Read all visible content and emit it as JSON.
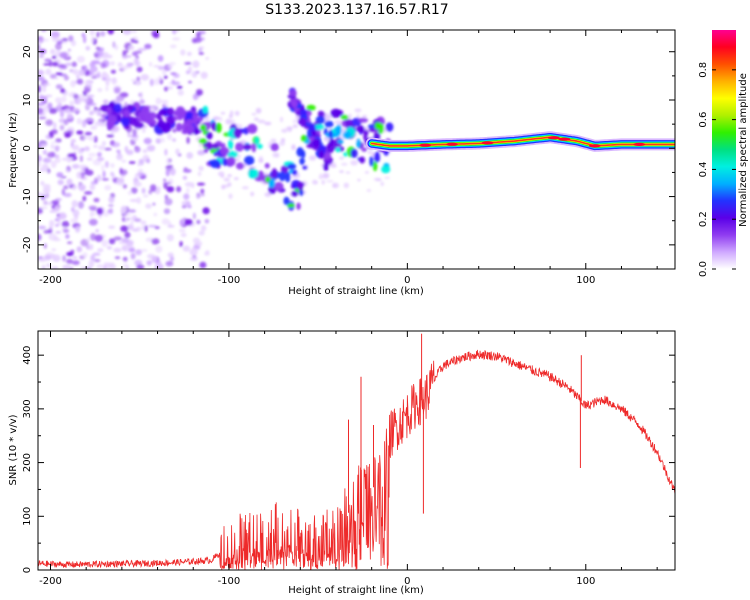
{
  "title": "S133.2023.137.16.57.R17",
  "chart_data": [
    {
      "type": "heatmap",
      "xlabel": "Height of straight line (km)",
      "ylabel": "Frequency (Hz)",
      "xlim": [
        -207,
        150
      ],
      "ylim": [
        -25,
        24.5
      ],
      "xticks": [
        -200,
        -100,
        0,
        100
      ],
      "yticks": [
        -20,
        -10,
        0,
        10,
        20
      ],
      "colorbar": {
        "label": "Normalized spectral amplitude",
        "range": [
          0,
          0.96
        ],
        "ticks": [
          "0.0",
          "0.2",
          "0.4",
          "0.6",
          "0.8"
        ],
        "colors": [
          "#ffffff",
          "#cfa8ff",
          "#8f3cf0",
          "#5a00e8",
          "#2233ff",
          "#00b0ff",
          "#00f0e0",
          "#00e080",
          "#30f000",
          "#b0f000",
          "#ffff00",
          "#ffb000",
          "#ff5000",
          "#ff0020",
          "#ff0090"
        ]
      },
      "ridge": [
        {
          "x": -170,
          "y": 6.5
        },
        {
          "x": -150,
          "y": 6.5
        },
        {
          "x": -130,
          "y": 6
        },
        {
          "x": -115,
          "y": 5.5
        },
        {
          "x": -110,
          "y": 1.5
        },
        {
          "x": -100,
          "y": 0.5
        },
        {
          "x": -90,
          "y": 1
        },
        {
          "x": -80,
          "y": -3
        },
        {
          "x": -70,
          "y": -5
        },
        {
          "x": -62,
          "y": -9
        },
        {
          "x": -55,
          "y": 4
        },
        {
          "x": -45,
          "y": 2
        },
        {
          "x": -35,
          "y": 3
        },
        {
          "x": -20,
          "y": 1
        },
        {
          "x": -10,
          "y": 0.5
        },
        {
          "x": 0,
          "y": 0.5
        },
        {
          "x": 20,
          "y": 0.8
        },
        {
          "x": 40,
          "y": 1
        },
        {
          "x": 60,
          "y": 1.5
        },
        {
          "x": 80,
          "y": 2.3
        },
        {
          "x": 95,
          "y": 1.5
        },
        {
          "x": 105,
          "y": 0.5
        },
        {
          "x": 120,
          "y": 0.8
        },
        {
          "x": 150,
          "y": 0.8
        }
      ]
    },
    {
      "type": "line",
      "xlabel": "Height of straight line (km)",
      "ylabel": "SNR (10 * v/v)",
      "xlim": [
        -207,
        150
      ],
      "ylim": [
        0,
        445
      ],
      "xticks": [
        -200,
        -100,
        0,
        100
      ],
      "yticks": [
        0,
        100,
        200,
        300,
        400
      ],
      "series": [
        {
          "color": "#ee2a2a",
          "points": [
            {
              "x": -207,
              "y": 12
            },
            {
              "x": -190,
              "y": 10
            },
            {
              "x": -170,
              "y": 11
            },
            {
              "x": -150,
              "y": 12
            },
            {
              "x": -130,
              "y": 14
            },
            {
              "x": -110,
              "y": 18
            },
            {
              "x": -100,
              "y": 45
            },
            {
              "x": -90,
              "y": 55
            },
            {
              "x": -80,
              "y": 65
            },
            {
              "x": -70,
              "y": 75
            },
            {
              "x": -60,
              "y": 60
            },
            {
              "x": -50,
              "y": 45
            },
            {
              "x": -40,
              "y": 75
            },
            {
              "x": -30,
              "y": 120
            },
            {
              "x": -25,
              "y": 160
            },
            {
              "x": -20,
              "y": 150
            },
            {
              "x": -15,
              "y": 170
            },
            {
              "x": -10,
              "y": 250
            },
            {
              "x": 0,
              "y": 290
            },
            {
              "x": 5,
              "y": 310
            },
            {
              "x": 10,
              "y": 320
            },
            {
              "x": 15,
              "y": 355
            },
            {
              "x": 20,
              "y": 380
            },
            {
              "x": 30,
              "y": 395
            },
            {
              "x": 40,
              "y": 402
            },
            {
              "x": 50,
              "y": 398
            },
            {
              "x": 60,
              "y": 385
            },
            {
              "x": 70,
              "y": 372
            },
            {
              "x": 80,
              "y": 360
            },
            {
              "x": 90,
              "y": 340
            },
            {
              "x": 96,
              "y": 320
            },
            {
              "x": 100,
              "y": 305
            },
            {
              "x": 110,
              "y": 318
            },
            {
              "x": 120,
              "y": 300
            },
            {
              "x": 130,
              "y": 270
            },
            {
              "x": 140,
              "y": 220
            },
            {
              "x": 150,
              "y": 145
            }
          ],
          "spikes": [
            {
              "x": -33,
              "y": 280
            },
            {
              "x": -26,
              "y": 360
            },
            {
              "x": -19,
              "y": 270
            },
            {
              "x": 8,
              "y": 440
            },
            {
              "x": 9,
              "y": 105
            },
            {
              "x": 97,
              "y": 190
            },
            {
              "x": 97.5,
              "y": 400
            }
          ]
        }
      ]
    }
  ]
}
